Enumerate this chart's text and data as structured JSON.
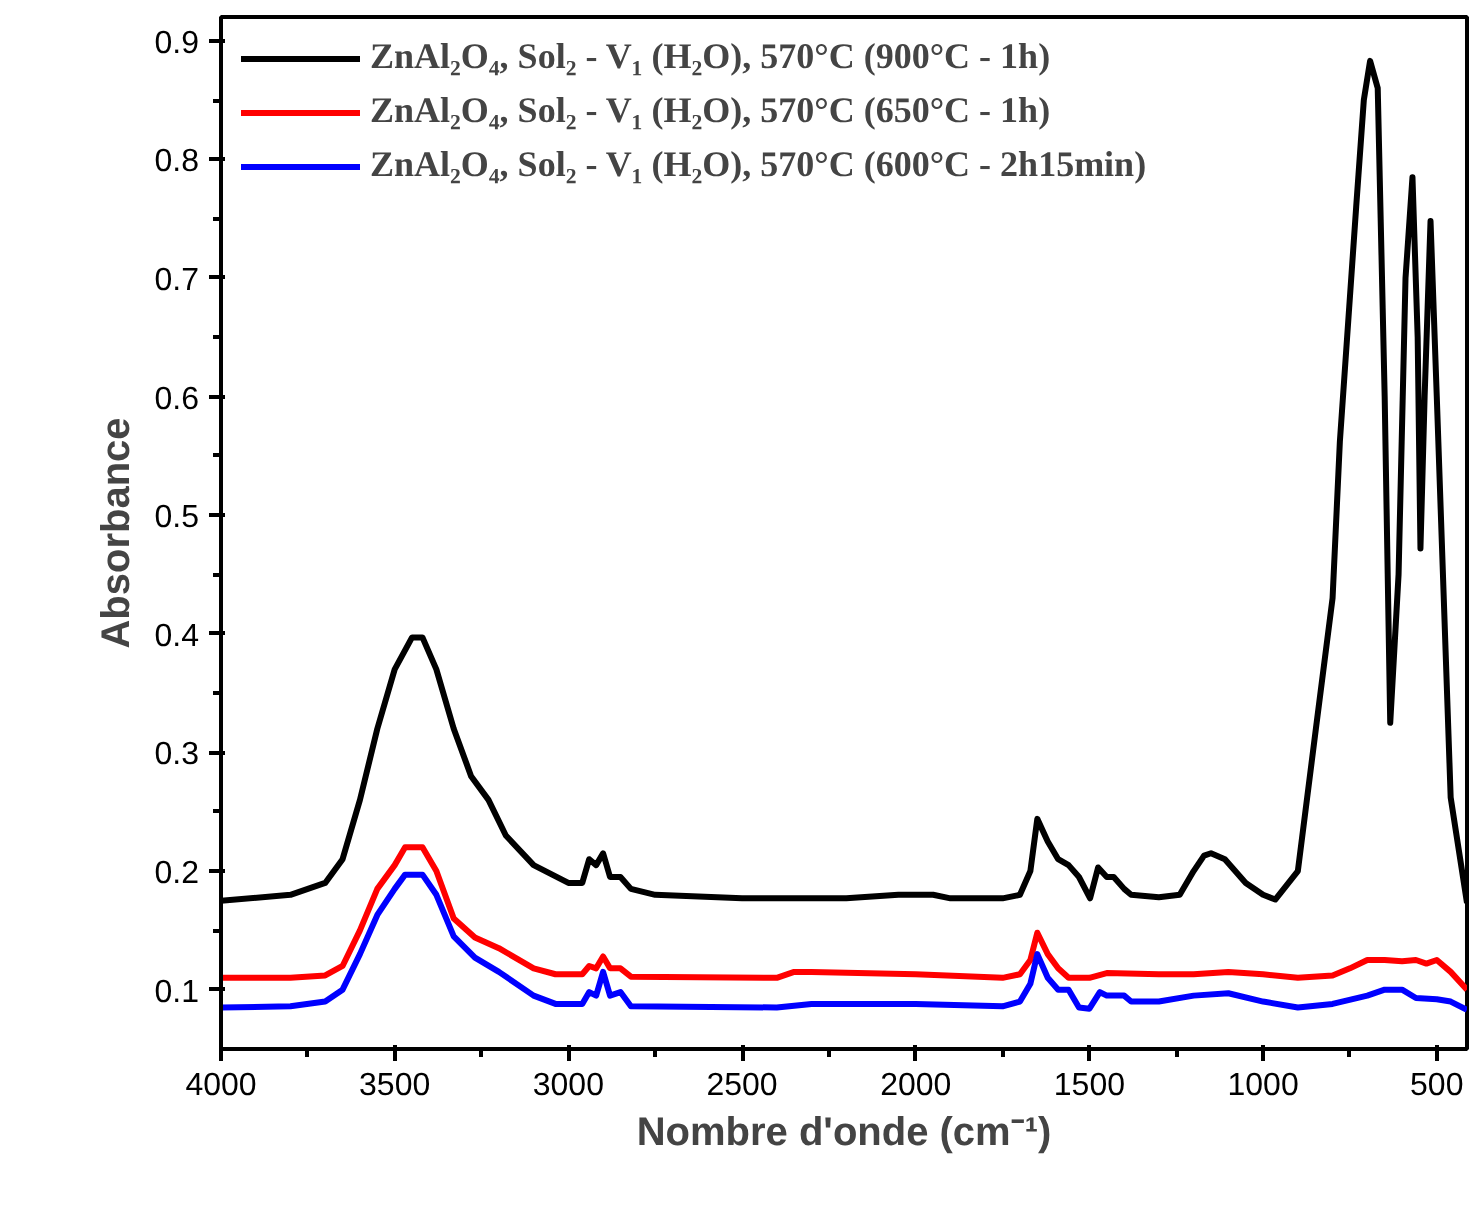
{
  "chart_data": {
    "type": "line",
    "xlabel": "Nombre d'onde (cm⁻¹)",
    "ylabel": "Absorbance",
    "xlim": [
      4000,
      413
    ],
    "ylim": [
      0.05,
      0.92
    ],
    "xticks": [
      4000,
      3500,
      3000,
      2500,
      2000,
      1500,
      1000,
      500
    ],
    "yticks": [
      0.1,
      0.2,
      0.3,
      0.4,
      0.5,
      0.6,
      0.7,
      0.8,
      0.9
    ],
    "grid": false,
    "legend": "top left",
    "line_style": "solid",
    "marker": "none",
    "series": [
      {
        "name": "ZnAl₂O₄, Sol₂ - V₁ (H₂O), 570°C (900°C - 1h)",
        "color": "#000000",
        "x": [
          4000,
          3800,
          3700,
          3650,
          3600,
          3550,
          3500,
          3450,
          3420,
          3380,
          3330,
          3280,
          3230,
          3180,
          3100,
          3000,
          2960,
          2940,
          2920,
          2900,
          2880,
          2850,
          2820,
          2750,
          2500,
          2200,
          2050,
          1950,
          1900,
          1750,
          1700,
          1670,
          1650,
          1620,
          1590,
          1560,
          1530,
          1498,
          1475,
          1450,
          1430,
          1400,
          1380,
          1300,
          1240,
          1200,
          1170,
          1150,
          1110,
          1050,
          1000,
          965,
          900,
          848,
          800,
          779,
          732,
          710,
          692,
          670,
          650,
          634,
          610,
          590,
          570,
          555,
          547,
          535,
          518,
          500,
          460,
          413
        ],
        "values": [
          0.175,
          0.18,
          0.19,
          0.21,
          0.26,
          0.32,
          0.37,
          0.397,
          0.397,
          0.37,
          0.32,
          0.28,
          0.26,
          0.23,
          0.205,
          0.19,
          0.19,
          0.21,
          0.205,
          0.215,
          0.195,
          0.195,
          0.185,
          0.18,
          0.177,
          0.177,
          0.18,
          0.18,
          0.177,
          0.177,
          0.18,
          0.2,
          0.244,
          0.225,
          0.21,
          0.205,
          0.195,
          0.177,
          0.203,
          0.195,
          0.195,
          0.185,
          0.18,
          0.178,
          0.18,
          0.2,
          0.213,
          0.215,
          0.21,
          0.19,
          0.18,
          0.176,
          0.2,
          0.32,
          0.43,
          0.562,
          0.76,
          0.85,
          0.883,
          0.86,
          0.6,
          0.325,
          0.45,
          0.7,
          0.785,
          0.65,
          0.472,
          0.6,
          0.748,
          0.6,
          0.262,
          0.173
        ]
      },
      {
        "name": "ZnAl₂O₄, Sol₂ - V₁ (H₂O), 570°C (650°C - 1h)",
        "color": "#ff0000",
        "x": [
          4000,
          3800,
          3700,
          3650,
          3600,
          3550,
          3500,
          3470,
          3420,
          3380,
          3330,
          3269,
          3200,
          3100,
          3037,
          2960,
          2940,
          2920,
          2900,
          2880,
          2850,
          2820,
          2400,
          2350,
          2300,
          2000,
          1750,
          1700,
          1670,
          1650,
          1620,
          1590,
          1560,
          1500,
          1450,
          1300,
          1200,
          1100,
          1000,
          900,
          800,
          750,
          700,
          650,
          600,
          560,
          530,
          500,
          460,
          413
        ],
        "values": [
          0.11,
          0.11,
          0.112,
          0.12,
          0.15,
          0.185,
          0.205,
          0.22,
          0.22,
          0.2,
          0.16,
          0.144,
          0.135,
          0.118,
          0.113,
          0.113,
          0.12,
          0.118,
          0.128,
          0.118,
          0.118,
          0.111,
          0.11,
          0.115,
          0.115,
          0.113,
          0.11,
          0.113,
          0.125,
          0.148,
          0.13,
          0.118,
          0.11,
          0.11,
          0.114,
          0.113,
          0.113,
          0.115,
          0.113,
          0.11,
          0.112,
          0.118,
          0.125,
          0.125,
          0.124,
          0.125,
          0.122,
          0.125,
          0.115,
          0.1
        ]
      },
      {
        "name": "ZnAl₂O₄, Sol₂ - V₁ (H₂O), 570°C (600°C - 2h15min)",
        "color": "#0000ff",
        "x": [
          4000,
          3800,
          3700,
          3650,
          3600,
          3550,
          3500,
          3470,
          3420,
          3380,
          3330,
          3269,
          3200,
          3100,
          3037,
          2960,
          2940,
          2920,
          2900,
          2880,
          2850,
          2820,
          2400,
          2300,
          2000,
          1750,
          1700,
          1670,
          1650,
          1620,
          1590,
          1560,
          1530,
          1500,
          1470,
          1450,
          1400,
          1380,
          1300,
          1200,
          1100,
          1000,
          900,
          800,
          700,
          650,
          600,
          560,
          500,
          460,
          413
        ],
        "values": [
          0.085,
          0.086,
          0.09,
          0.1,
          0.13,
          0.163,
          0.185,
          0.197,
          0.197,
          0.18,
          0.145,
          0.127,
          0.115,
          0.095,
          0.088,
          0.088,
          0.098,
          0.095,
          0.115,
          0.095,
          0.098,
          0.086,
          0.085,
          0.088,
          0.088,
          0.086,
          0.09,
          0.105,
          0.13,
          0.11,
          0.1,
          0.1,
          0.085,
          0.084,
          0.098,
          0.095,
          0.095,
          0.09,
          0.09,
          0.095,
          0.097,
          0.09,
          0.085,
          0.088,
          0.095,
          0.1,
          0.1,
          0.093,
          0.092,
          0.09,
          0.083
        ]
      }
    ]
  }
}
